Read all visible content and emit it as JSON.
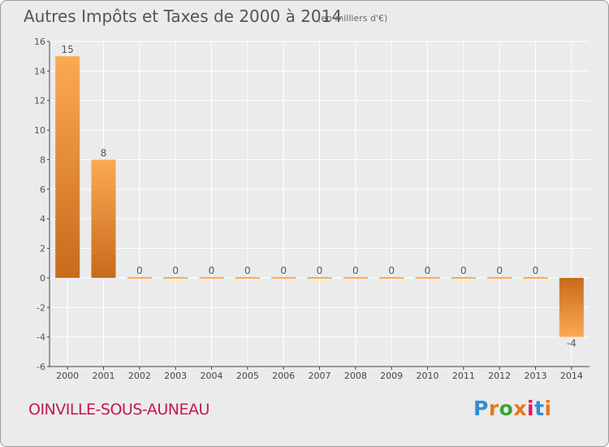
{
  "title": "Autres Impôts et Taxes de 2000 à 2014",
  "subtitle": "(en milliers d'€)",
  "commune": "OINVILLE-SOUS-AUNEAU",
  "logo": {
    "text": "Proxiti",
    "letter_colors": [
      "#2b8fd6",
      "#e8761c",
      "#3aa535",
      "#e8761c",
      "#d81e5b",
      "#2b8fd6",
      "#e8761c"
    ]
  },
  "colors": {
    "bar_light": "#fbaa52",
    "bar_dark": "#c86a1c",
    "background": "#ebebeb",
    "grid": "#ffffff",
    "title": "#555555",
    "commune": "#c0195a"
  },
  "chart_data": {
    "type": "bar",
    "title": "Autres Impôts et Taxes de 2000 à 2014",
    "subtitle": "(en milliers d'€)",
    "categories": [
      "2000",
      "2001",
      "2002",
      "2003",
      "2004",
      "2005",
      "2006",
      "2007",
      "2008",
      "2009",
      "2010",
      "2011",
      "2012",
      "2013",
      "2014"
    ],
    "values": [
      15,
      8,
      0,
      0,
      0,
      0,
      0,
      0,
      0,
      0,
      0,
      0,
      0,
      0,
      -4
    ],
    "data_labels": [
      "15",
      "8",
      "0",
      "0",
      "0",
      "0",
      "0",
      "0",
      "0",
      "0",
      "0",
      "0",
      "0",
      "0",
      "-4"
    ],
    "yticks": [
      "-6",
      "-4",
      "-2",
      "0",
      "2",
      "4",
      "6",
      "8",
      "10",
      "12",
      "14",
      "16"
    ],
    "ylim": [
      -6,
      16
    ],
    "xlabel": "",
    "ylabel": "",
    "grid": true
  }
}
